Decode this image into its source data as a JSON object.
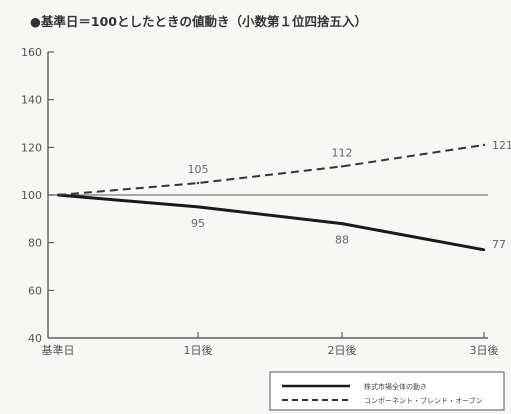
{
  "chart_data": {
    "type": "line",
    "title": "●基準日＝100としたときの値動き（小数第１位四捨五入）",
    "categories": [
      "基準日",
      "1日後",
      "2日後",
      "3日後"
    ],
    "ylim": [
      40,
      160
    ],
    "yticks": [
      40,
      60,
      80,
      100,
      120,
      140,
      160
    ],
    "baseline": 100,
    "grid": false,
    "legend_position": "bottom-right",
    "series": [
      {
        "name": "株式市場全体の動き",
        "values": [
          100,
          95,
          88,
          77
        ],
        "labels": [
          "",
          "95",
          "88",
          "77"
        ],
        "style": "solid",
        "color": "#1a1a1a"
      },
      {
        "name": "コンポーネント・ブレンド・オーブン",
        "values": [
          100,
          105,
          112,
          121
        ],
        "labels": [
          "",
          "105",
          "112",
          "121"
        ],
        "style": "dashed",
        "color": "#333333"
      }
    ]
  },
  "colors": {
    "axis": "#444444",
    "baseline": "#777777",
    "background": "#f7f7f5"
  }
}
